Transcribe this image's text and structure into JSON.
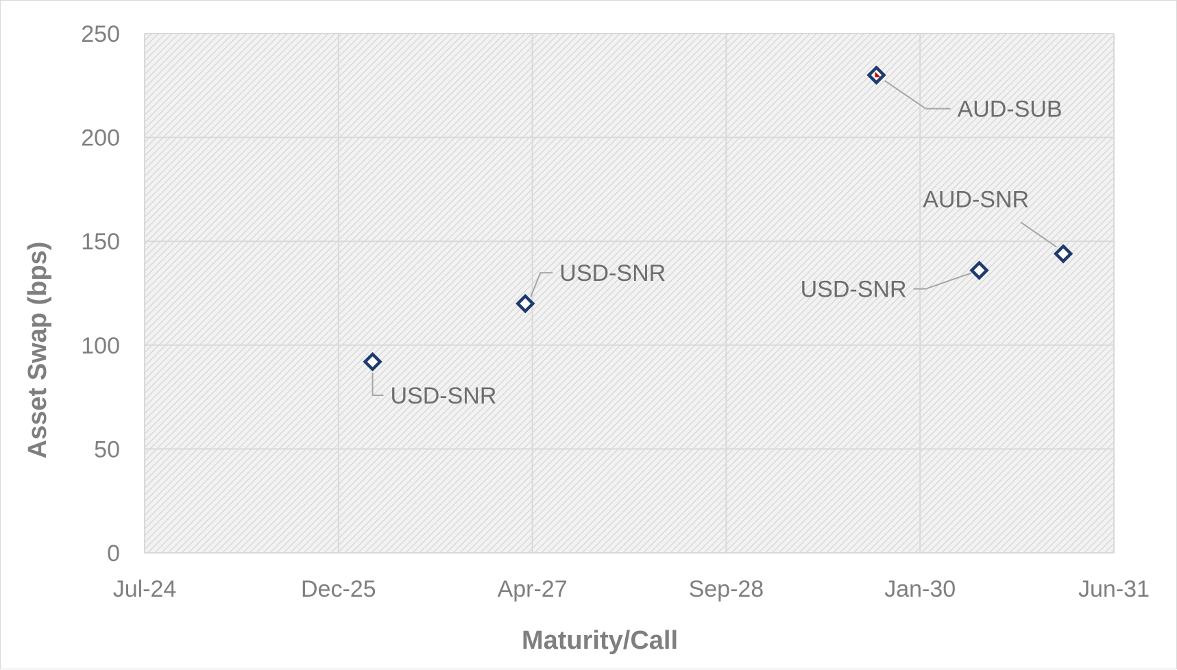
{
  "chart_data": {
    "type": "scatter",
    "title": "",
    "xlabel": "Maturity/Call",
    "ylabel": "Asset Swap (bps)",
    "x_axis_type": "date",
    "xlim": [
      "2024-07-01",
      "2031-06-01"
    ],
    "ylim": [
      0,
      250
    ],
    "x_ticks": [
      "Jul-24",
      "Dec-25",
      "Apr-27",
      "Sep-28",
      "Jan-30",
      "Jun-31"
    ],
    "y_ticks": [
      0,
      50,
      100,
      150,
      200,
      250
    ],
    "grid": true,
    "legend": "none",
    "marker": "diamond-open",
    "marker_color": "#1f3a6e",
    "highlight_color": "#c00000",
    "points": [
      {
        "x": "2026-02-15",
        "y": 92,
        "label": "USD-SNR"
      },
      {
        "x": "2027-03-20",
        "y": 120,
        "label": "USD-SNR"
      },
      {
        "x": "2029-09-20",
        "y": 230,
        "label": "AUD-SUB",
        "highlight": true
      },
      {
        "x": "2030-06-15",
        "y": 136,
        "label": "USD-SNR"
      },
      {
        "x": "2031-01-20",
        "y": 144,
        "label": "AUD-SNR"
      }
    ]
  }
}
